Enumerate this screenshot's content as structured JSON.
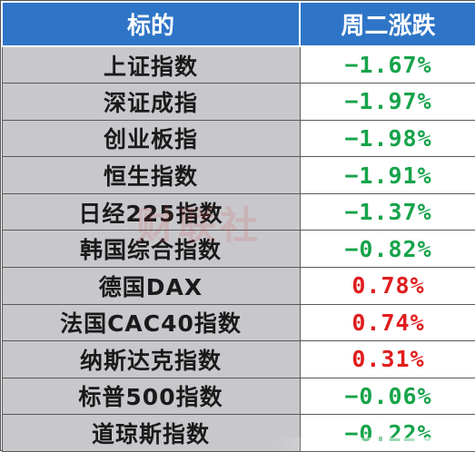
{
  "header": {
    "col_name": "标的",
    "col_change": "周二涨跌"
  },
  "rows": [
    {
      "name": "上证指数",
      "change": "−1.67%",
      "direction": "down"
    },
    {
      "name": "深证成指",
      "change": "−1.97%",
      "direction": "down"
    },
    {
      "name": "创业板指",
      "change": "−1.98%",
      "direction": "down"
    },
    {
      "name": "恒生指数",
      "change": "−1.91%",
      "direction": "down"
    },
    {
      "name": "日经225指数",
      "change": "−1.37%",
      "direction": "down"
    },
    {
      "name": "韩国综合指数",
      "change": "−0.82%",
      "direction": "down"
    },
    {
      "name": "德国DAX",
      "change": "0.78%",
      "direction": "up"
    },
    {
      "name": "法国CAC40指数",
      "change": "0.74%",
      "direction": "up"
    },
    {
      "name": "纳斯达克指数",
      "change": "0.31%",
      "direction": "up"
    },
    {
      "name": "标普500指数",
      "change": "−0.06%",
      "direction": "down"
    },
    {
      "name": "道琼斯指数",
      "change": "−0.22%",
      "direction": "down"
    }
  ],
  "watermark": "财联社",
  "colors": {
    "header_bg": "#2f75c7",
    "name_bg": "#c8c8cc",
    "down": "#16a34a",
    "up": "#e11d1d"
  }
}
